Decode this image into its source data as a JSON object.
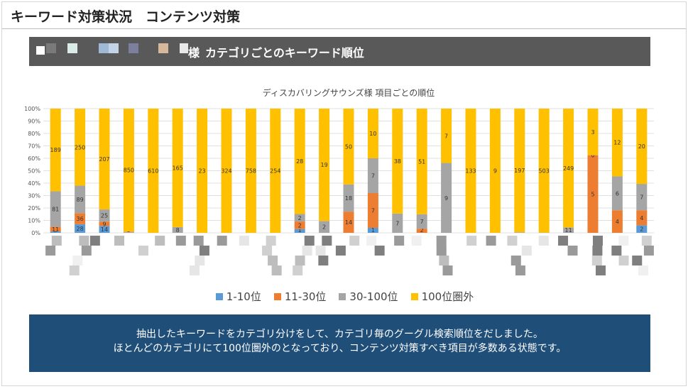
{
  "page": {
    "title": "キーワード対策状況　コンテンツ対策"
  },
  "section": {
    "prefix": "様",
    "title": "カテゴリごとのキーワード順位"
  },
  "chart_data": {
    "type": "bar",
    "stacked": "percent",
    "title": "ディスカバリングサウンズ様  項目ごとの順位",
    "y_ticks": [
      "0%",
      "10%",
      "20%",
      "30%",
      "40%",
      "50%",
      "60%",
      "70%",
      "80%",
      "90%",
      "100%"
    ],
    "ylim": [
      0,
      100
    ],
    "grid": true,
    "legend_position": "bottom",
    "categories_redacted": true,
    "series": [
      {
        "name": "1-10位",
        "color": "#5b9bd5",
        "values": [
          3,
          28,
          14,
          1,
          0,
          0,
          0,
          0,
          0,
          0,
          1,
          0,
          0,
          1,
          0,
          0,
          0,
          0,
          0,
          0,
          0,
          0,
          0,
          0,
          2
        ]
      },
      {
        "name": "11-30位",
        "color": "#ed7d31",
        "values": [
          11,
          36,
          9,
          3,
          0,
          0,
          0,
          0,
          0,
          0,
          2,
          0,
          14,
          7,
          0,
          2,
          0,
          0,
          0,
          0,
          0,
          0,
          5,
          4,
          4
        ]
      },
      {
        "name": "30-100位",
        "color": "#a5a5a5",
        "values": [
          81,
          89,
          25,
          5,
          0,
          8,
          0,
          0,
          0,
          0,
          2,
          2,
          18,
          7,
          7,
          7,
          9,
          0,
          0,
          1,
          1,
          11,
          0,
          6,
          7
        ]
      },
      {
        "name": "100位圏外",
        "color": "#ffc000",
        "values": [
          189,
          250,
          207,
          850,
          610,
          165,
          23,
          324,
          758,
          254,
          28,
          19,
          50,
          10,
          38,
          51,
          7,
          133,
          9,
          197,
          503,
          249,
          3,
          12,
          20
        ]
      }
    ]
  },
  "footer": {
    "line1": "抽出したキーワードをカテゴリ分けをして、カテゴリ毎のグーグル検索順位をだしました。",
    "line2": "ほとんどのカテゴリにて100位圏外のとなっており、コンテンツ対策すべき項目が多数ある状態です。"
  },
  "colors": {
    "section_bar": "#595959",
    "footer_bg": "#1f4e79"
  }
}
